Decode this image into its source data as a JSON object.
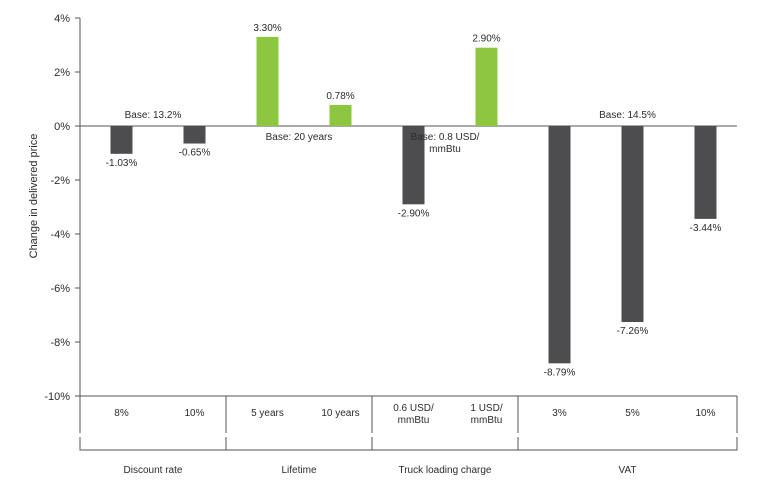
{
  "chart_data": {
    "type": "bar",
    "ylabel": "Change in delivered price",
    "ylim": [
      -10,
      4
    ],
    "yticks": [
      4,
      2,
      0,
      -2,
      -4,
      -6,
      -8,
      -10
    ],
    "ytick_labels": [
      "4%",
      "2%",
      "0%",
      "-2%",
      "-4%",
      "-6%",
      "-8%",
      "-10%"
    ],
    "colors": {
      "negative": "#4d4d4f",
      "positive": "#8dc63f"
    },
    "groups": [
      {
        "name": "Discount rate",
        "base_label": "Base: 13.2%",
        "bars": [
          {
            "category": "8%",
            "value": -1.03,
            "label": "-1.03%"
          },
          {
            "category": "10%",
            "value": -0.65,
            "label": "-0.65%"
          }
        ]
      },
      {
        "name": "Lifetime",
        "base_label": "Base: 20 years",
        "bars": [
          {
            "category": "5 years",
            "value": 3.3,
            "label": "3.30%"
          },
          {
            "category": "10 years",
            "value": 0.78,
            "label": "0.78%"
          }
        ]
      },
      {
        "name": "Truck loading charge",
        "base_label": "Base: 0.8 USD/ mmBtu",
        "bars": [
          {
            "category": "0.6 USD/ mmBtu",
            "value": -2.9,
            "label": "-2.90%"
          },
          {
            "category": "1 USD/ mmBtu",
            "value": 2.9,
            "label": "2.90%"
          }
        ]
      },
      {
        "name": "VAT",
        "base_label": "Base: 14.5%",
        "bars": [
          {
            "category": "3%",
            "value": -8.79,
            "label": "-8.79%"
          },
          {
            "category": "5%",
            "value": -7.26,
            "label": "-7.26%"
          },
          {
            "category": "10%",
            "value": -3.44,
            "label": "-3.44%"
          }
        ]
      }
    ]
  }
}
